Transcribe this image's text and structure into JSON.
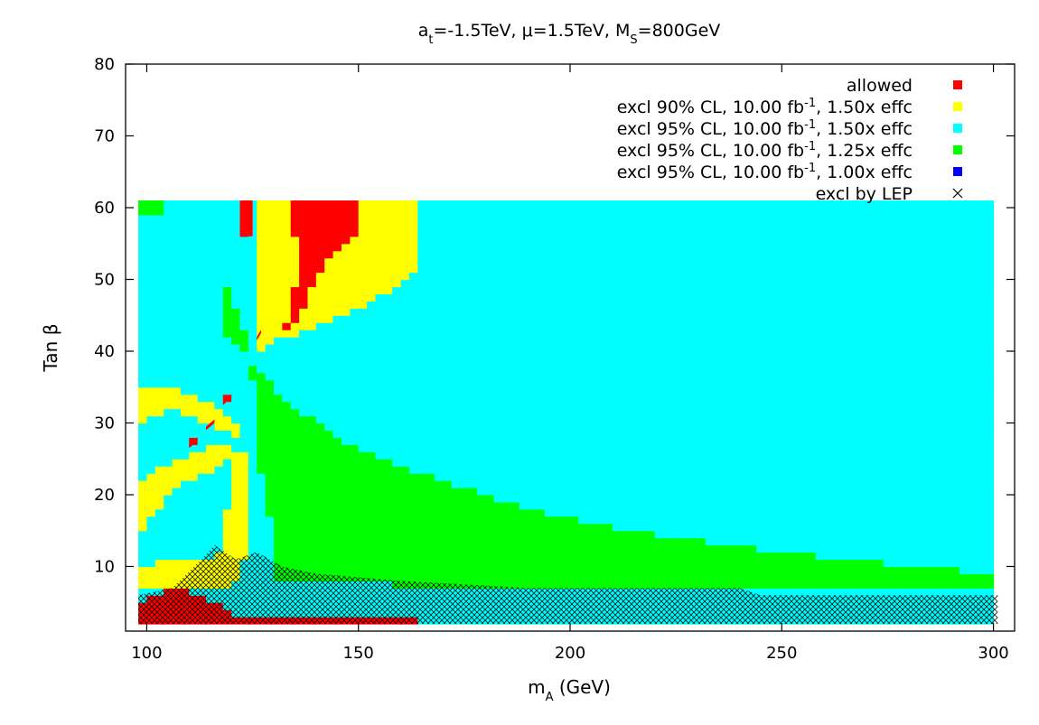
{
  "chart_data": {
    "type": "heatmap",
    "title": {
      "parts": [
        {
          "t": "a"
        },
        {
          "t": "t",
          "sub": true
        },
        {
          "t": "=-1.5TeV, "
        },
        {
          "t": "μ"
        },
        {
          "t": "=1.5TeV, M"
        },
        {
          "t": "S",
          "sub": true
        },
        {
          "t": "=800GeV"
        }
      ]
    },
    "xlabel": {
      "parts": [
        {
          "t": "m"
        },
        {
          "t": "A",
          "sub": true
        },
        {
          "t": " (GeV)"
        }
      ]
    },
    "ylabel": "Tan β",
    "xlim": [
      95,
      305
    ],
    "ylim": [
      1,
      80
    ],
    "xticks": [
      100,
      150,
      200,
      250,
      300
    ],
    "yticks": [
      10,
      20,
      30,
      40,
      50,
      60,
      70,
      80
    ],
    "legend_position": "top-right",
    "legend": [
      {
        "id": "allowed",
        "color": "#ff0000",
        "marker": "square",
        "parts": [
          {
            "t": "allowed"
          }
        ]
      },
      {
        "id": "excl90_150",
        "color": "#ffff00",
        "marker": "square",
        "parts": [
          {
            "t": "excl 90% CL, 10.00 fb"
          },
          {
            "t": "-1",
            "sup": true
          },
          {
            "t": ", 1.50x effc"
          }
        ]
      },
      {
        "id": "excl95_150",
        "color": "#00ffff",
        "marker": "square",
        "parts": [
          {
            "t": "excl 95% CL, 10.00 fb"
          },
          {
            "t": "-1",
            "sup": true
          },
          {
            "t": ", 1.50x effc"
          }
        ]
      },
      {
        "id": "excl95_125",
        "color": "#00ff00",
        "marker": "square",
        "parts": [
          {
            "t": "excl 95% CL, 10.00 fb"
          },
          {
            "t": "-1",
            "sup": true
          },
          {
            "t": ", 1.25x effc"
          }
        ]
      },
      {
        "id": "excl95_100",
        "color": "#0000ff",
        "marker": "square",
        "parts": [
          {
            "t": "excl 95% CL, 10.00 fb"
          },
          {
            "t": "-1",
            "sup": true
          },
          {
            "t": ", 1.00x effc"
          }
        ]
      },
      {
        "id": "lep",
        "color": "#000000",
        "marker": "cross",
        "parts": [
          {
            "t": "excl by LEP"
          }
        ]
      }
    ],
    "grid": {
      "x_range": [
        98,
        301
      ],
      "y_range": [
        2,
        61
      ],
      "x_step": 2,
      "y_step": 1
    },
    "regions": [
      {
        "series": "excl95_150",
        "poly": [
          [
            98,
            2
          ],
          [
            301,
            2
          ],
          [
            301,
            61
          ],
          [
            98,
            61
          ]
        ]
      },
      {
        "series": "excl95_125",
        "poly": [
          [
            130,
            8
          ],
          [
            130,
            14
          ],
          [
            127,
            23
          ],
          [
            126,
            35
          ],
          [
            124,
            38
          ],
          [
            126,
            38
          ],
          [
            131,
            34
          ],
          [
            145,
            28
          ],
          [
            160,
            24
          ],
          [
            175,
            21
          ],
          [
            190,
            18
          ],
          [
            205,
            16
          ],
          [
            225,
            14
          ],
          [
            245,
            12.5
          ],
          [
            265,
            11
          ],
          [
            285,
            10
          ],
          [
            301,
            9
          ],
          [
            301,
            7
          ],
          [
            255,
            7
          ],
          [
            210,
            7
          ],
          [
            170,
            7
          ],
          [
            145,
            8
          ]
        ]
      },
      {
        "series": "excl95_125",
        "poly": [
          [
            118,
            43
          ],
          [
            118,
            49
          ],
          [
            120,
            49
          ],
          [
            121,
            46
          ],
          [
            123,
            43
          ],
          [
            124,
            40
          ],
          [
            122,
            40
          ],
          [
            120,
            42
          ]
        ]
      },
      {
        "series": "excl95_125",
        "poly": [
          [
            98,
            59
          ],
          [
            98,
            61
          ],
          [
            104,
            61
          ],
          [
            104,
            59
          ],
          [
            101,
            59
          ]
        ]
      },
      {
        "series": "excl90_150",
        "poly": [
          [
            126,
            40
          ],
          [
            126,
            61
          ],
          [
            165,
            61
          ],
          [
            165,
            52
          ],
          [
            160,
            49
          ],
          [
            150,
            46
          ],
          [
            140,
            43.5
          ],
          [
            131,
            41.5
          ]
        ]
      },
      {
        "series": "excl90_150",
        "poly": [
          [
            98,
            30
          ],
          [
            98,
            35
          ],
          [
            106,
            35
          ],
          [
            114,
            33
          ],
          [
            120,
            31
          ],
          [
            123,
            29
          ],
          [
            121,
            28
          ],
          [
            115,
            30
          ],
          [
            106,
            32
          ]
        ]
      },
      {
        "series": "excl90_150",
        "poly": [
          [
            98,
            14
          ],
          [
            98,
            22
          ],
          [
            104,
            24
          ],
          [
            112,
            26
          ],
          [
            118,
            27
          ],
          [
            121,
            26
          ],
          [
            118,
            24
          ],
          [
            110,
            22
          ],
          [
            104,
            19
          ]
        ]
      },
      {
        "series": "excl90_150",
        "poly": [
          [
            116,
            9
          ],
          [
            119,
            18
          ],
          [
            121,
            26
          ],
          [
            124,
            26
          ],
          [
            124,
            12
          ],
          [
            121,
            8
          ]
        ]
      },
      {
        "series": "excl90_150",
        "poly": [
          [
            98,
            7
          ],
          [
            98,
            10
          ],
          [
            108,
            11
          ],
          [
            114,
            11
          ],
          [
            121,
            9
          ],
          [
            121,
            7
          ],
          [
            110,
            7
          ]
        ]
      },
      {
        "series": "allowed",
        "poly": [
          [
            134,
            46
          ],
          [
            136,
            51
          ],
          [
            134,
            61
          ],
          [
            151,
            61
          ],
          [
            151,
            57
          ],
          [
            144,
            54
          ],
          [
            139,
            49
          ],
          [
            136,
            45
          ],
          [
            133,
            43
          ],
          [
            131,
            41
          ]
        ]
      },
      {
        "series": "allowed",
        "poly": [
          [
            123,
            56
          ],
          [
            123,
            61
          ],
          [
            125,
            61
          ],
          [
            125,
            56
          ]
        ]
      },
      {
        "series": "allowed",
        "poly": [
          [
            98,
            2
          ],
          [
            98,
            5
          ],
          [
            106,
            7
          ],
          [
            113,
            6
          ],
          [
            121,
            3.5
          ],
          [
            135,
            3
          ],
          [
            165,
            3
          ],
          [
            165,
            2
          ]
        ]
      },
      {
        "series": "allowed",
        "poly": [
          [
            110,
            27
          ],
          [
            112,
            28
          ],
          [
            112,
            27.5
          ],
          [
            110,
            26.5
          ]
        ]
      },
      {
        "series": "allowed",
        "poly": [
          [
            114,
            29.5
          ],
          [
            116,
            30.5
          ],
          [
            116,
            30
          ],
          [
            114,
            29
          ]
        ]
      },
      {
        "series": "allowed",
        "poly": [
          [
            118,
            33
          ],
          [
            120,
            34
          ],
          [
            120,
            33.5
          ],
          [
            118,
            32.5
          ]
        ]
      },
      {
        "series": "allowed",
        "poly": [
          [
            126,
            42
          ],
          [
            127,
            43
          ],
          [
            127,
            42.5
          ],
          [
            126,
            41.5
          ]
        ]
      }
    ],
    "lep_exclusion": [
      [
        98,
        2
      ],
      [
        98,
        6
      ],
      [
        106,
        7
      ],
      [
        113,
        11
      ],
      [
        116,
        13
      ],
      [
        121,
        11
      ],
      [
        126,
        12
      ],
      [
        132,
        10
      ],
      [
        140,
        9
      ],
      [
        160,
        8
      ],
      [
        190,
        7
      ],
      [
        240,
        7
      ],
      [
        245,
        6
      ],
      [
        301,
        6
      ],
      [
        301,
        2
      ]
    ]
  }
}
